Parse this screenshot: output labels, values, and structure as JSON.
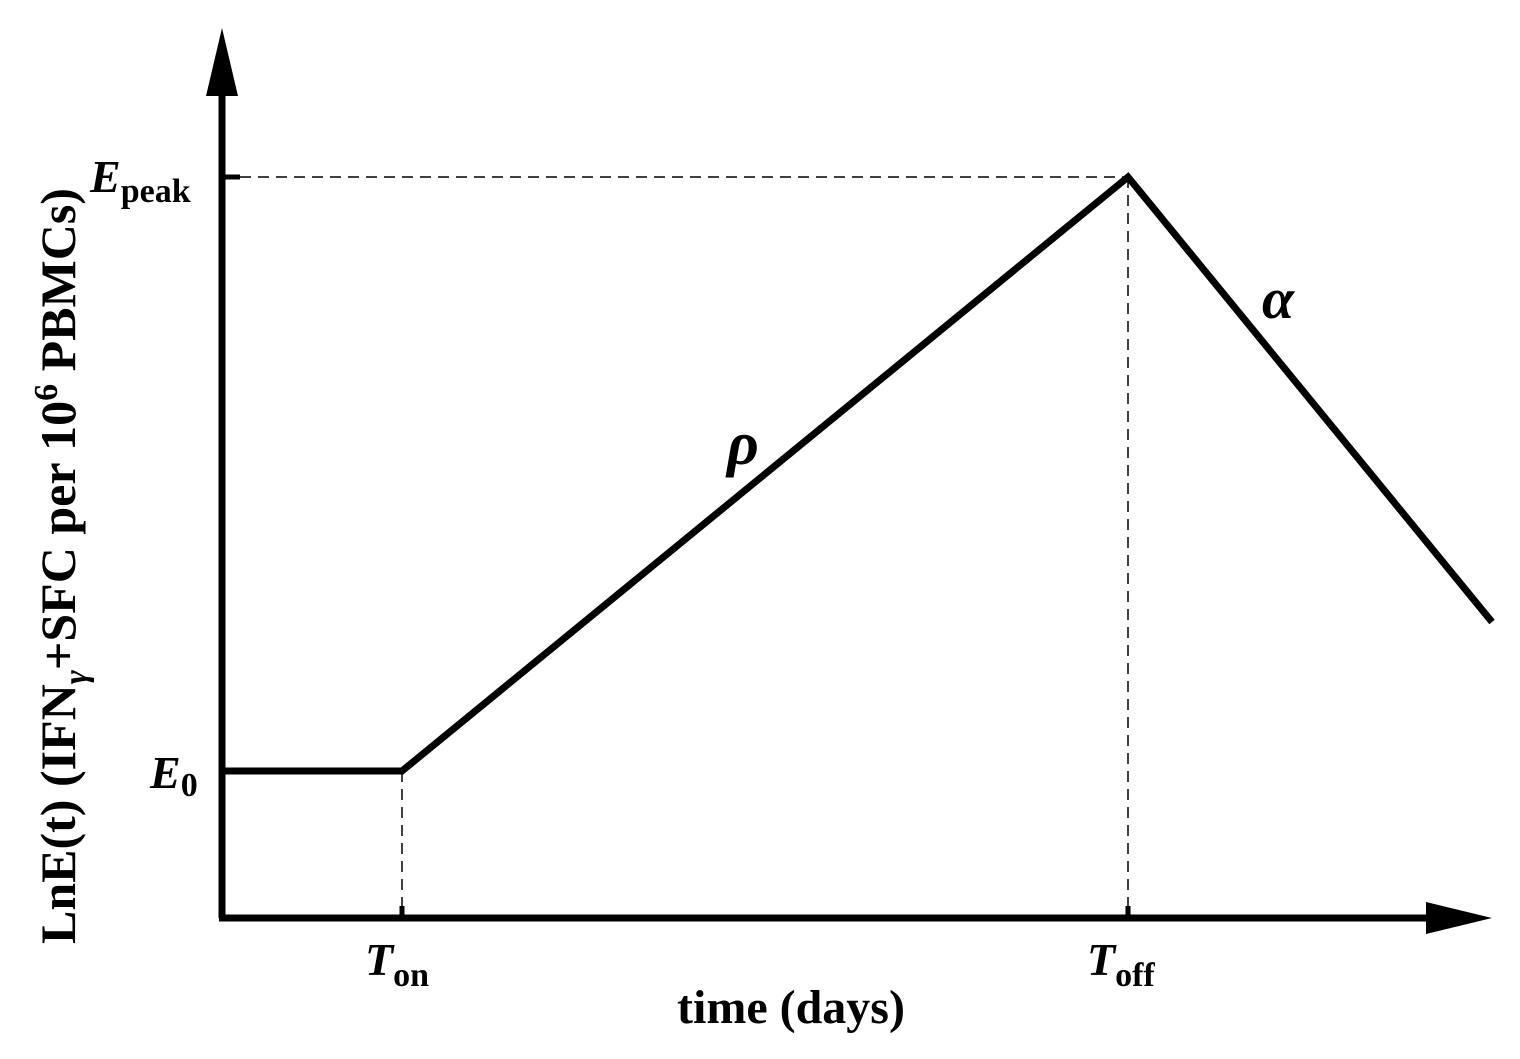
{
  "diagram": {
    "y_axis_label": {
      "prefix": "LnE(t) (IFN",
      "gamma": "γ",
      "middle": "+SFC per 10",
      "exponent": "6",
      "suffix": " PBMCs)"
    },
    "x_axis_label": "time (days)",
    "x_ticks": {
      "t_on": {
        "main": "T",
        "sub": "on"
      },
      "t_off": {
        "main": "T",
        "sub": "off"
      }
    },
    "y_ticks": {
      "e_peak": {
        "main": "E",
        "sub": "peak"
      },
      "e_0": {
        "main": "E",
        "sub": "0"
      }
    },
    "segment_labels": {
      "rho": "ρ",
      "alpha": "α"
    }
  }
}
